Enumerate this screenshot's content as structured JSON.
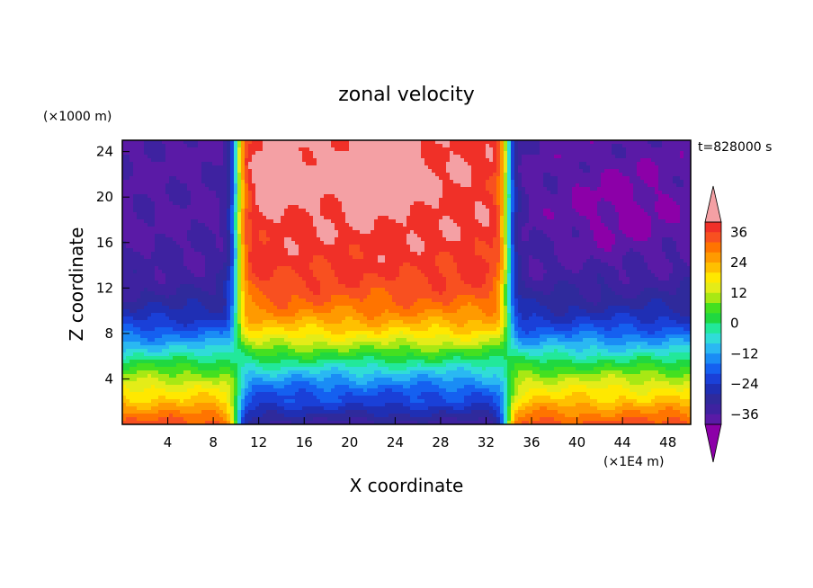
{
  "chart_data": {
    "type": "heatmap",
    "title": "zonal velocity",
    "xlabel": "X coordinate",
    "ylabel": "Z coordinate",
    "x_unit": "(×1E4 m)",
    "y_unit": "(×1000 m)",
    "time_label": "t=828000 s",
    "xlim": [
      0,
      50
    ],
    "ylim": [
      0,
      25
    ],
    "x_ticks": [
      4,
      8,
      12,
      16,
      20,
      24,
      28,
      32,
      36,
      40,
      44,
      48
    ],
    "y_ticks": [
      4,
      8,
      12,
      16,
      20,
      24
    ],
    "colorbar": {
      "min": -40,
      "max": 40,
      "interval": 4,
      "tick_labels": [
        "36",
        "24",
        "12",
        "0",
        "−12",
        "−24",
        "−36"
      ],
      "tick_values": [
        36,
        24,
        12,
        0,
        -12,
        -24,
        -36
      ]
    },
    "jet_structure": {
      "westerly_core_x_range": [
        10,
        34
      ],
      "shear_lines_x": [
        9,
        34
      ],
      "max_westerly": 40,
      "max_easterly": -40,
      "level_of_zero_wind": 6
    }
  }
}
